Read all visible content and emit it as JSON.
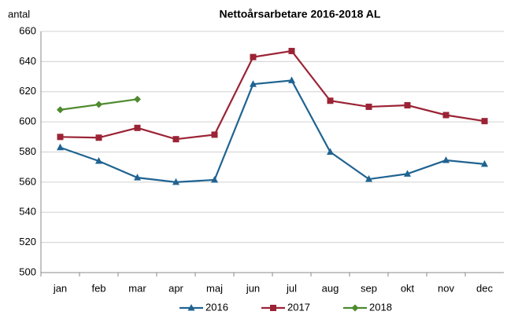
{
  "chart_data": {
    "type": "line",
    "title": "Nettoårsarbetare 2016-2018 AL",
    "y_label": "antal",
    "categories": [
      "jan",
      "feb",
      "mar",
      "apr",
      "maj",
      "jun",
      "jul",
      "aug",
      "sep",
      "okt",
      "nov",
      "dec"
    ],
    "series": [
      {
        "name": "2016",
        "color": "#1f6391",
        "marker": "triangle",
        "values": [
          583,
          574,
          563,
          560,
          561.5,
          625,
          627.5,
          580,
          562,
          565.5,
          574.5,
          572
        ]
      },
      {
        "name": "2017",
        "color": "#9b2335",
        "marker": "square",
        "values": [
          590,
          589.5,
          596,
          588.5,
          591.5,
          643,
          647,
          614,
          610,
          611,
          604.5,
          600.5
        ]
      },
      {
        "name": "2018",
        "color": "#4e8a2e",
        "marker": "diamond",
        "values": [
          608,
          611.5,
          615,
          null,
          null,
          null,
          null,
          null,
          null,
          null,
          null,
          null
        ]
      }
    ],
    "ylim": [
      500,
      660
    ],
    "yticks": [
      500,
      520,
      540,
      560,
      580,
      600,
      620,
      640,
      660
    ],
    "grid": true,
    "legend": "bottom"
  }
}
